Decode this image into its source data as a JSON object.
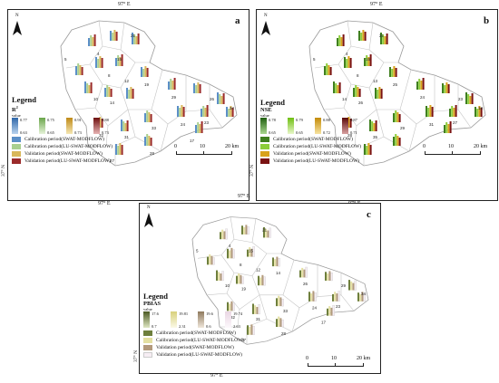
{
  "coords": {
    "lon": "97° E",
    "lat": "37° N",
    "north": "N"
  },
  "scale": {
    "ticks": [
      "0",
      "10",
      "20 km"
    ]
  },
  "colors": {
    "cal_swat": "#5b8fc7",
    "cal_lu": "#a9cf8f",
    "val_swat": "#d9b85a",
    "val_lu": "#9b2b2b",
    "b_cal_swat": "#3f7f1f",
    "b_cal_lu": "#8ccd3a",
    "b_val_swat": "#d9a21a",
    "b_val_lu": "#7a1212",
    "c_cal_swat": "#6e7f3c",
    "c_cal_lu": "#e4e0a2",
    "c_val_swat": "#b39a7c",
    "c_val_lu": "#f7eef4"
  },
  "panels": [
    {
      "letter": "a",
      "legend_title": "Legend",
      "metric": "R",
      "metric_sup": "2",
      "value_label": "value",
      "ramps": [
        {
          "hi": "0.77",
          "lo": "0.63"
        },
        {
          "hi": "0.75",
          "lo": "0.65"
        },
        {
          "hi": "0.91",
          "lo": "0.73"
        },
        {
          "hi": "0.88",
          "lo": "0.73"
        }
      ],
      "periods": [
        "Calibration period(SWAT-MODFLOW)",
        "Calibration period(LU-SWAT-MODFLOW)",
        "Validation period(SWAT-MODFLOW)",
        "Validation period(LU-SWAT-MODFLOW)"
      ],
      "labels": [
        "21",
        "5",
        "4",
        "15",
        "8",
        "12",
        "10",
        "14",
        "19",
        "29",
        "26",
        "34",
        "33",
        "24",
        "23",
        "32",
        "31",
        "28",
        "27",
        "17"
      ]
    },
    {
      "letter": "b",
      "legend_title": "Legend",
      "metric": "NSE",
      "metric_sup": "",
      "value_label": "value",
      "ramps": [
        {
          "hi": "0.78",
          "lo": "0.65"
        },
        {
          "hi": "0.79",
          "lo": "0.65"
        },
        {
          "hi": "0.88",
          "lo": "0.72"
        },
        {
          "hi": "0.87",
          "lo": "0.71"
        }
      ],
      "periods": [
        "Calibration period(SWAT-MODFLOW)",
        "Calibration period(LU-SWAT-MODFLOW)",
        "Validation period(SWAT-MODFLOW)",
        "Validation period(LU-SWAT-MODFLOW)"
      ],
      "labels": [
        "21",
        "5",
        "4",
        "15",
        "8",
        "13",
        "14",
        "26",
        "25",
        "24",
        "23",
        "18",
        "29",
        "31",
        "27",
        "28",
        "35"
      ]
    },
    {
      "letter": "c",
      "legend_title": "Legend",
      "metric": "PBIAS",
      "metric_sup": "",
      "value_label": "value",
      "ramps": [
        {
          "hi": "17.6",
          "lo": "0.7"
        },
        {
          "hi": "19.81",
          "lo": "2.31"
        },
        {
          "hi": "19.6",
          "lo": "0.6"
        },
        {
          "hi": "19.74",
          "lo": "2.63"
        }
      ],
      "periods": [
        "Calibration period(SWAT-MODFLOW)",
        "Calibration period(LU-SWAT-MODFLOW)",
        "Validation period(SWAT-MODFLOW)",
        "Validation period(LU-SWAT-MODFLOW)"
      ],
      "labels": [
        "21",
        "5",
        "4",
        "15",
        "8",
        "12",
        "10",
        "19",
        "14",
        "26",
        "29",
        "34",
        "33",
        "24",
        "23",
        "32",
        "31",
        "28",
        "27",
        "17"
      ]
    }
  ]
}
